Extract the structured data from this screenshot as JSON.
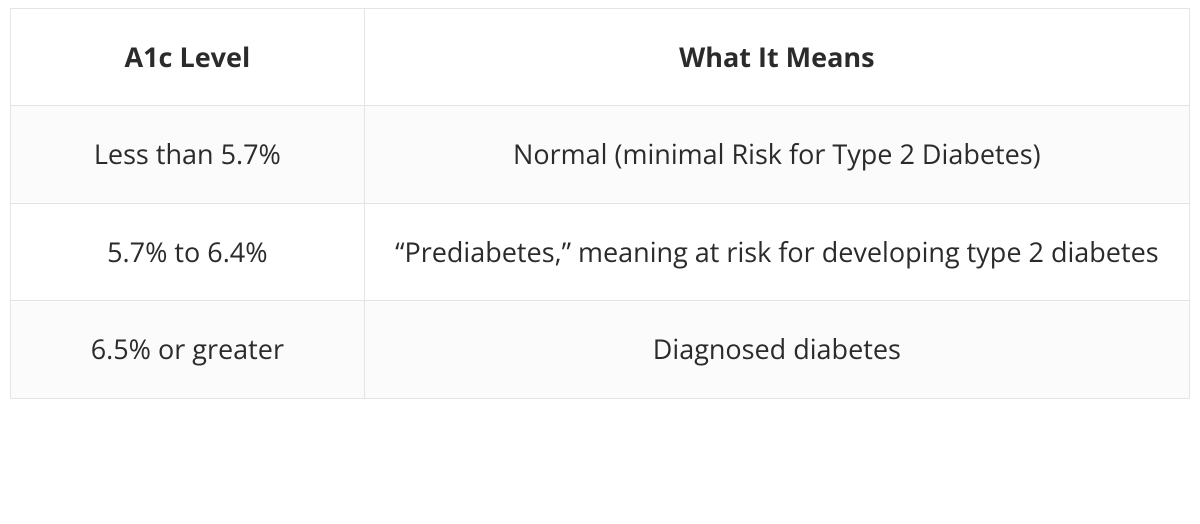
{
  "table": {
    "type": "table",
    "columns": [
      {
        "key": "level",
        "label": "A1c Level",
        "width_pct": 30,
        "align": "center"
      },
      {
        "key": "meaning",
        "label": "What It Means",
        "width_pct": 70,
        "align": "center"
      }
    ],
    "rows": [
      {
        "level": "Less than 5.7%",
        "meaning": "Normal (minimal Risk for Type 2 Diabetes)"
      },
      {
        "level": "5.7% to 6.4%",
        "meaning": "“Prediabetes,” meaning at risk for developing type 2 diabetes"
      },
      {
        "level": "6.5% or greater",
        "meaning": "Diagnosed diabetes"
      }
    ],
    "row_backgrounds": [
      "#fbfbfb",
      "#ffffff",
      "#fbfbfb"
    ],
    "header_background": "#ffffff",
    "colors": {
      "border": "#e4e4e4",
      "text": "#2b2b2b",
      "bg_white": "#ffffff",
      "bg_alt": "#fbfbfb"
    },
    "font": {
      "header_weight": 700,
      "body_weight": 400,
      "size_pt": 20
    }
  }
}
